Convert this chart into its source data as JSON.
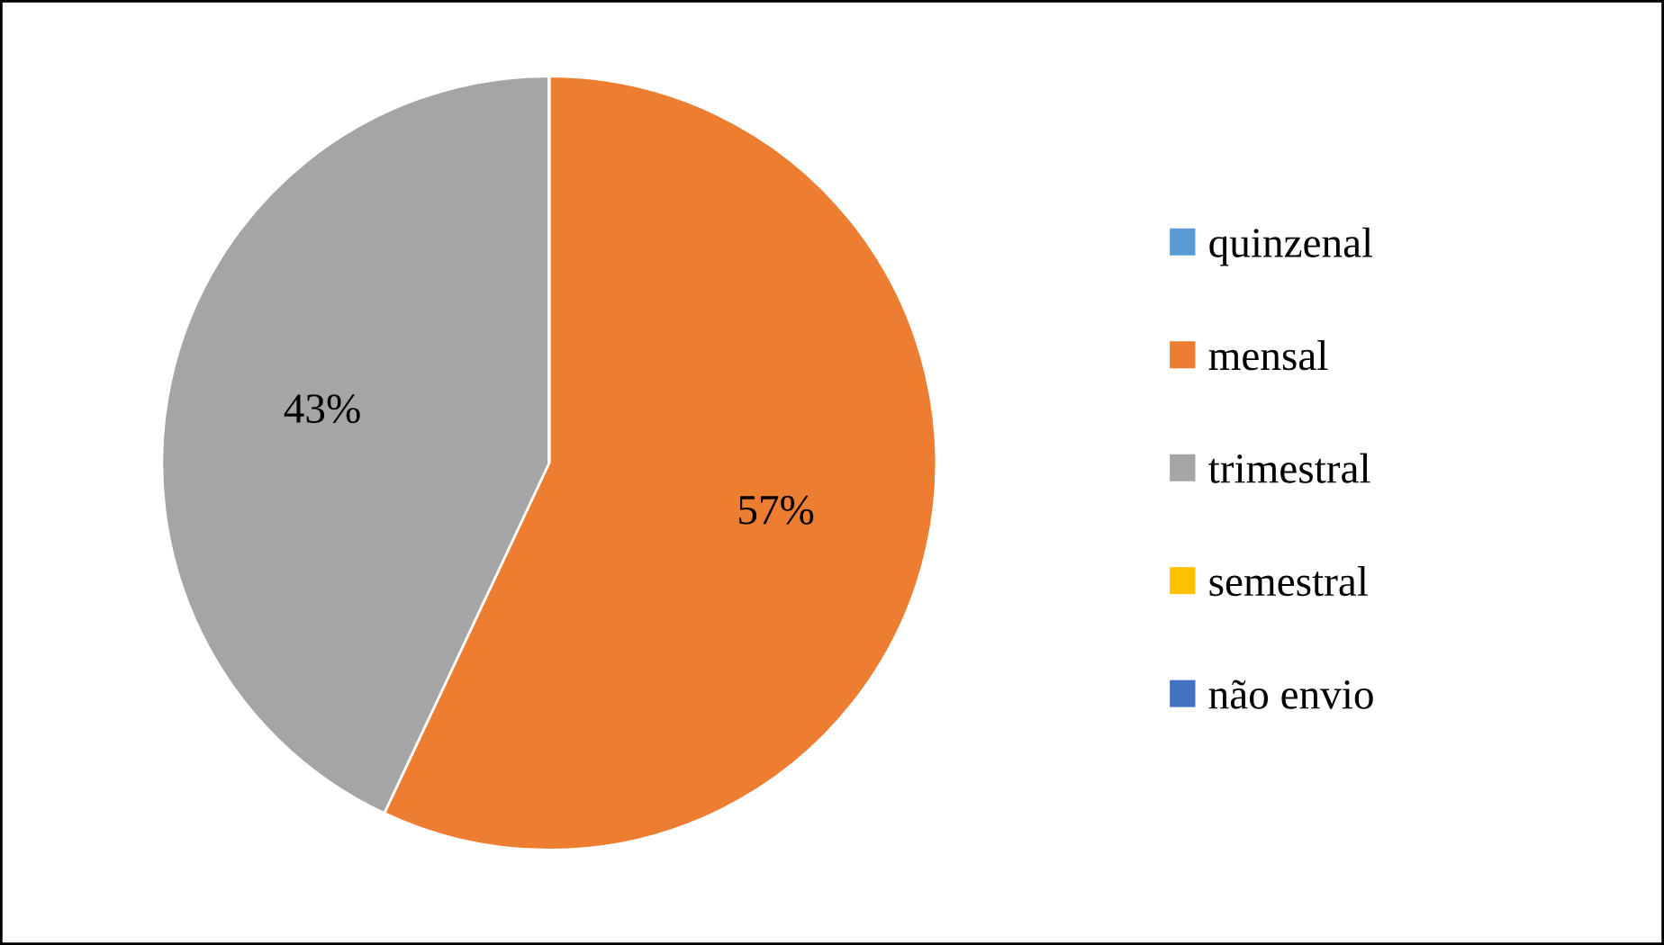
{
  "chart_data": {
    "type": "pie",
    "categories": [
      "quinzenal",
      "mensal",
      "trimestral",
      "semestral",
      "não envio"
    ],
    "values": [
      0,
      57,
      43,
      0,
      0
    ],
    "colors": [
      "#5b9bd5",
      "#ed7d31",
      "#a5a5a5",
      "#ffc000",
      "#4472c4"
    ],
    "value_labels": [
      null,
      "57%",
      "43%",
      null,
      null
    ],
    "legend": "right"
  }
}
